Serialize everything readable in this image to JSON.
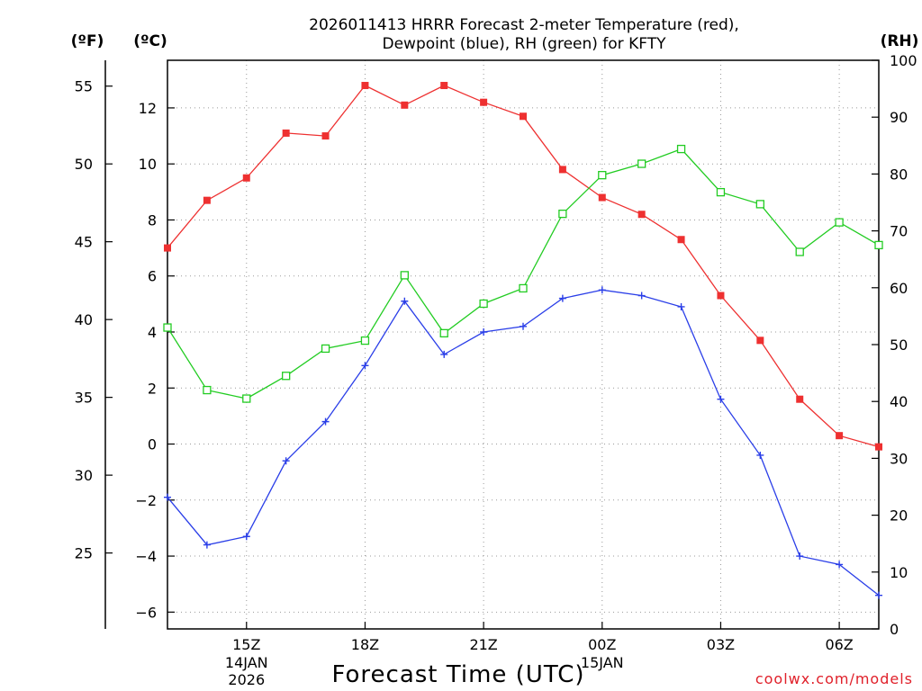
{
  "header": {
    "title_line1": "2026011413 HRRR Forecast 2-meter Temperature (red),",
    "title_line2": "Dewpoint (blue), RH (green) for KFTY"
  },
  "units": {
    "f": "(ºF)",
    "c": "(ºC)",
    "rh": "(RH)"
  },
  "footer": {
    "credit": "coolwx.com/models"
  },
  "chart_data": {
    "type": "line",
    "title": "2026011413 HRRR Forecast 2-meter Temperature (red), Dewpoint (blue), RH (green) for KFTY",
    "xlabel": "Forecast Time (UTC)",
    "x": [
      "13Z",
      "14Z",
      "15Z",
      "16Z",
      "17Z",
      "18Z",
      "19Z",
      "20Z",
      "21Z",
      "22Z",
      "23Z",
      "00Z",
      "01Z",
      "02Z",
      "03Z",
      "04Z",
      "05Z",
      "06Z",
      "07Z"
    ],
    "x_ticks": [
      {
        "index": 2,
        "label": "15Z",
        "sub1": "14JAN",
        "sub2": "2026"
      },
      {
        "index": 5,
        "label": "18Z",
        "sub1": "",
        "sub2": ""
      },
      {
        "index": 8,
        "label": "21Z",
        "sub1": "",
        "sub2": ""
      },
      {
        "index": 11,
        "label": "00Z",
        "sub1": "15JAN",
        "sub2": ""
      },
      {
        "index": 14,
        "label": "03Z",
        "sub1": "",
        "sub2": ""
      },
      {
        "index": 17,
        "label": "06Z",
        "sub1": "",
        "sub2": ""
      }
    ],
    "y_c": {
      "label": "(ºC)",
      "range": [
        -6.6,
        13.7
      ],
      "ticks": [
        -6,
        -4,
        -2,
        0,
        2,
        4,
        6,
        8,
        10,
        12
      ]
    },
    "y_f": {
      "label": "(ºF)",
      "ticks": [
        25,
        30,
        35,
        40,
        45,
        50,
        55
      ]
    },
    "y_rh": {
      "label": "(RH)",
      "range": [
        0,
        100
      ],
      "ticks": [
        0,
        10,
        20,
        30,
        40,
        50,
        60,
        70,
        80,
        90,
        100
      ]
    },
    "series": [
      {
        "name": "Temperature",
        "axis": "c",
        "color": "#ee3030",
        "marker": "filled-square",
        "values": [
          7.0,
          8.7,
          9.5,
          11.1,
          11.0,
          12.8,
          12.1,
          12.8,
          12.2,
          11.7,
          9.8,
          8.8,
          8.2,
          7.3,
          5.3,
          3.7,
          1.6,
          0.3,
          -0.1
        ]
      },
      {
        "name": "Dewpoint",
        "axis": "c",
        "color": "#2a3ee8",
        "marker": "plus",
        "values": [
          -1.9,
          -3.6,
          -3.3,
          -0.6,
          0.8,
          2.8,
          5.1,
          3.2,
          4.0,
          4.2,
          5.2,
          5.5,
          5.3,
          4.9,
          1.6,
          -0.4,
          -4.0,
          -4.3,
          -5.4
        ]
      },
      {
        "name": "RH",
        "axis": "rh",
        "color": "#22cc22",
        "marker": "open-square",
        "values": [
          53,
          42,
          40.5,
          44.5,
          49.3,
          50.7,
          62.2,
          52,
          57.2,
          59.9,
          73,
          79.8,
          81.8,
          84.4,
          76.8,
          74.7,
          66.3,
          71.5,
          67.5
        ]
      }
    ]
  }
}
